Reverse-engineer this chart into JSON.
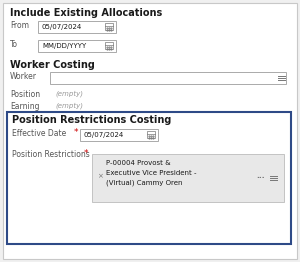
{
  "bg_color": "#f0f0f0",
  "panel_bg": "#ffffff",
  "border_color": "#c8c8c8",
  "highlight_border": "#2e4a87",
  "title_text": "Include Existing Allocations",
  "from_label": "From",
  "from_value": "05/07/2024",
  "to_label": "To",
  "to_value": "MM/DD/YYYY",
  "worker_costing_title": "Worker Costing",
  "worker_label": "Worker",
  "position_label": "Position",
  "position_value": "(empty)",
  "earning_label": "Earning",
  "earning_value": "(empty)",
  "restrictions_title": "Position Restrictions Costing",
  "eff_date_label": "Effective Date",
  "eff_date_value": "05/07/2024",
  "pos_rest_label": "Position Restrictions",
  "pos_rest_line1": "P-00004 Provost &",
  "pos_rest_line2": "Executive Vice President -",
  "pos_rest_line3": "(Virtual) Cammy Oren",
  "required_color": "#cc0000",
  "label_color": "#555555",
  "empty_color": "#999999",
  "date_box_bg": "#ffffff",
  "date_border": "#aaaaaa",
  "tag_bg": "#e8e8e8",
  "tag_border": "#bbbbbb",
  "text_color": "#1a1a1a",
  "icon_color": "#777777",
  "title_fontsize": 7.0,
  "label_fontsize": 5.5,
  "small_fontsize": 5.0
}
